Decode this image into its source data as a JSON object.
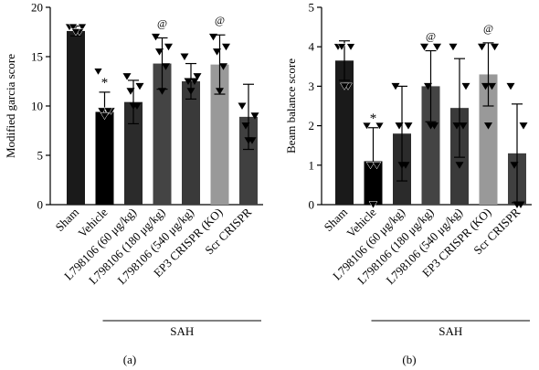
{
  "chart_data": [
    {
      "type": "bar",
      "panel_label": "(a)",
      "ylabel": "Modified garcia score",
      "ylim": [
        0,
        20
      ],
      "yticks": [
        0,
        5,
        10,
        15,
        20
      ],
      "categories": [
        "Sham",
        "Vehicle",
        "L798106 (60 μg/kg)",
        "L798106 (180 μg/kg)",
        "L798106 (540 μg/kg)",
        "EP3 CRISPR (KO)",
        "Scr CRISPR"
      ],
      "values": [
        17.6,
        9.4,
        10.4,
        14.3,
        12.5,
        14.2,
        8.9
      ],
      "errors": [
        0.5,
        2.0,
        2.2,
        2.6,
        1.8,
        3.0,
        3.3
      ],
      "points": [
        [
          18,
          18,
          18,
          17.5,
          17.5
        ],
        [
          13.5,
          9.5,
          9.5,
          9.5,
          9
        ],
        [
          13,
          12,
          11.5,
          10,
          10
        ],
        [
          17,
          16,
          15.5,
          14,
          11.5
        ],
        [
          15,
          13,
          12.5,
          12.5,
          11.5
        ],
        [
          17,
          16,
          15.5,
          14,
          11.5
        ],
        [
          10,
          9,
          8,
          6.5,
          6.5
        ]
      ],
      "bar_colors": [
        "#1a1a1a",
        "#000000",
        "#2b2b2b",
        "#444444",
        "#3a3a3a",
        "#999999",
        "#404040"
      ],
      "annotations": [
        {
          "category_index": 1,
          "text": "*"
        },
        {
          "category_index": 3,
          "text": "@"
        },
        {
          "category_index": 5,
          "text": "@"
        }
      ],
      "group_bracket": {
        "from_index": 1,
        "to_index": 6,
        "label": "SAH"
      }
    },
    {
      "type": "bar",
      "panel_label": "(b)",
      "ylabel": "Beam balance score",
      "ylim": [
        0,
        5
      ],
      "yticks": [
        0,
        1,
        2,
        3,
        4,
        5
      ],
      "categories": [
        "Sham",
        "Vehicle",
        "L798106 (60 μg/kg)",
        "L798106 (180 μg/kg)",
        "L798106 (540 μg/kg)",
        "EP3 CRISPR (KO)",
        "Scr CRISPR"
      ],
      "values": [
        3.65,
        1.1,
        1.8,
        3.0,
        2.45,
        3.3,
        1.3
      ],
      "errors": [
        0.5,
        0.85,
        1.2,
        0.9,
        1.25,
        0.8,
        1.25
      ],
      "points": [
        [
          4,
          4,
          4,
          3,
          3
        ],
        [
          2,
          2,
          1,
          1,
          0
        ],
        [
          3,
          2,
          2,
          1,
          1
        ],
        [
          4,
          4,
          3,
          2,
          2
        ],
        [
          4,
          3,
          2,
          2,
          1
        ],
        [
          4,
          4,
          3,
          3,
          2
        ],
        [
          3,
          2,
          1,
          0,
          0
        ]
      ],
      "bar_colors": [
        "#1a1a1a",
        "#000000",
        "#2b2b2b",
        "#444444",
        "#3a3a3a",
        "#999999",
        "#404040"
      ],
      "annotations": [
        {
          "category_index": 1,
          "text": "*"
        },
        {
          "category_index": 3,
          "text": "@"
        },
        {
          "category_index": 5,
          "text": "@"
        }
      ],
      "group_bracket": {
        "from_index": 1,
        "to_index": 6,
        "label": "SAH"
      }
    }
  ]
}
